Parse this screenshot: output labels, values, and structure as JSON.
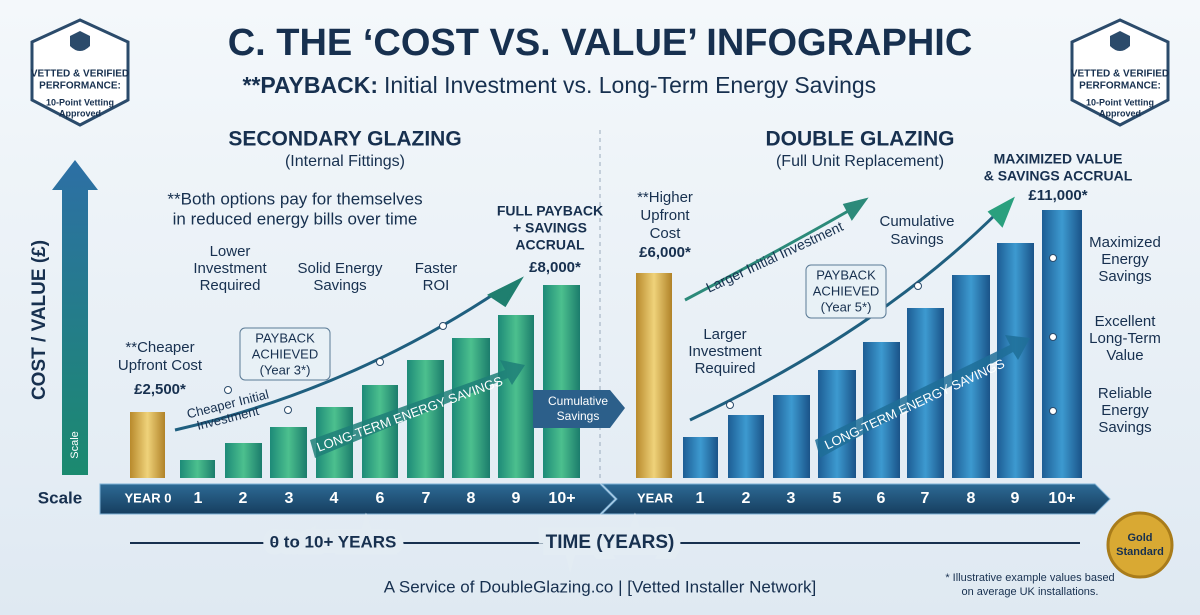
{
  "header": {
    "title": "C. THE ‘COST VS. VALUE’ INFOGRAPHIC",
    "subtitle_bold": "**PAYBACK:",
    "subtitle": "Initial Investment vs. Long-Term Energy Savings"
  },
  "badges": [
    {
      "lines": [
        "VETTED & VERIFIED",
        "PERFORMANCE:"
      ],
      "note": [
        "10-Point Vetting",
        "Approved"
      ]
    },
    {
      "lines": [
        "VETTED & VERIFIED",
        "PERFORMANCE:"
      ],
      "note": [
        "10-Point Vetting",
        "Approved"
      ]
    }
  ],
  "y_axis": {
    "label": "COST / VALUE (£)",
    "scale": "Scale",
    "row_label": "Scale"
  },
  "secondary": {
    "title": "SECONDARY GLAZING",
    "subtitle": "(Internal Fittings)",
    "note": [
      "**Both options pay for themselves",
      "in reduced energy bills over time"
    ],
    "upfront": [
      "**Cheaper",
      "Upfront Cost"
    ],
    "upfront_price": "£2,500*",
    "callouts": [
      [
        "Lower",
        "Investment",
        "Required"
      ],
      [
        "Solid Energy",
        "Savings"
      ],
      [
        "Faster",
        "ROI"
      ]
    ],
    "payback": [
      "PAYBACK",
      "ACHIEVED",
      "(Year 3*)"
    ],
    "trend": [
      "Cheaper Initial",
      "Investment"
    ],
    "savings_arrow": "LONG-TERM ENERGY SAVINGS",
    "final": [
      "FULL PAYBACK",
      "+ SAVINGS",
      "ACCRUAL"
    ],
    "final_price": "£8,000*",
    "cumulative": [
      "Cumulative",
      "Savings"
    ],
    "years": [
      "YEAR 0",
      "1",
      "2",
      "3",
      "4",
      "6",
      "7",
      "8",
      "9",
      "10+"
    ]
  },
  "double": {
    "title": "DOUBLE GLAZING",
    "subtitle": "(Full Unit Replacement)",
    "upfront": [
      "**Higher",
      "Upfront",
      "Cost"
    ],
    "upfront_price": "£6,000*",
    "trend": "Larger Initial Investment",
    "cumulative": [
      "Cumulative",
      "Savings"
    ],
    "final": [
      "MAXIMIZED VALUE",
      "& SAVINGS ACCRUAL"
    ],
    "final_price": "£11,000*",
    "payback": [
      "PAYBACK",
      "ACHIEVED",
      "(Year 5*)"
    ],
    "investment": [
      "Larger",
      "Investment",
      "Required"
    ],
    "savings_arrow": "LONG-TERM ENERGY SAVINGS",
    "benefits": [
      [
        "Maximized",
        "Energy",
        "Savings"
      ],
      [
        "Excellent",
        "Long-Term",
        "Value"
      ],
      [
        "Reliable",
        "Energy",
        "Savings"
      ]
    ],
    "years": [
      "YEAR",
      "1",
      "2",
      "3",
      "5",
      "6",
      "7",
      "8",
      "9",
      "10+"
    ]
  },
  "timeline": {
    "range": "0 to 10+ YEARS",
    "label": "TIME (YEARS)"
  },
  "footer": {
    "service": "A Service of DoubleGlazing.co | [Vetted Installer Network]",
    "footnote": [
      "* Illustrative example values based",
      "on average UK installations."
    ]
  },
  "seal": [
    "Gold",
    "Standard"
  ]
}
